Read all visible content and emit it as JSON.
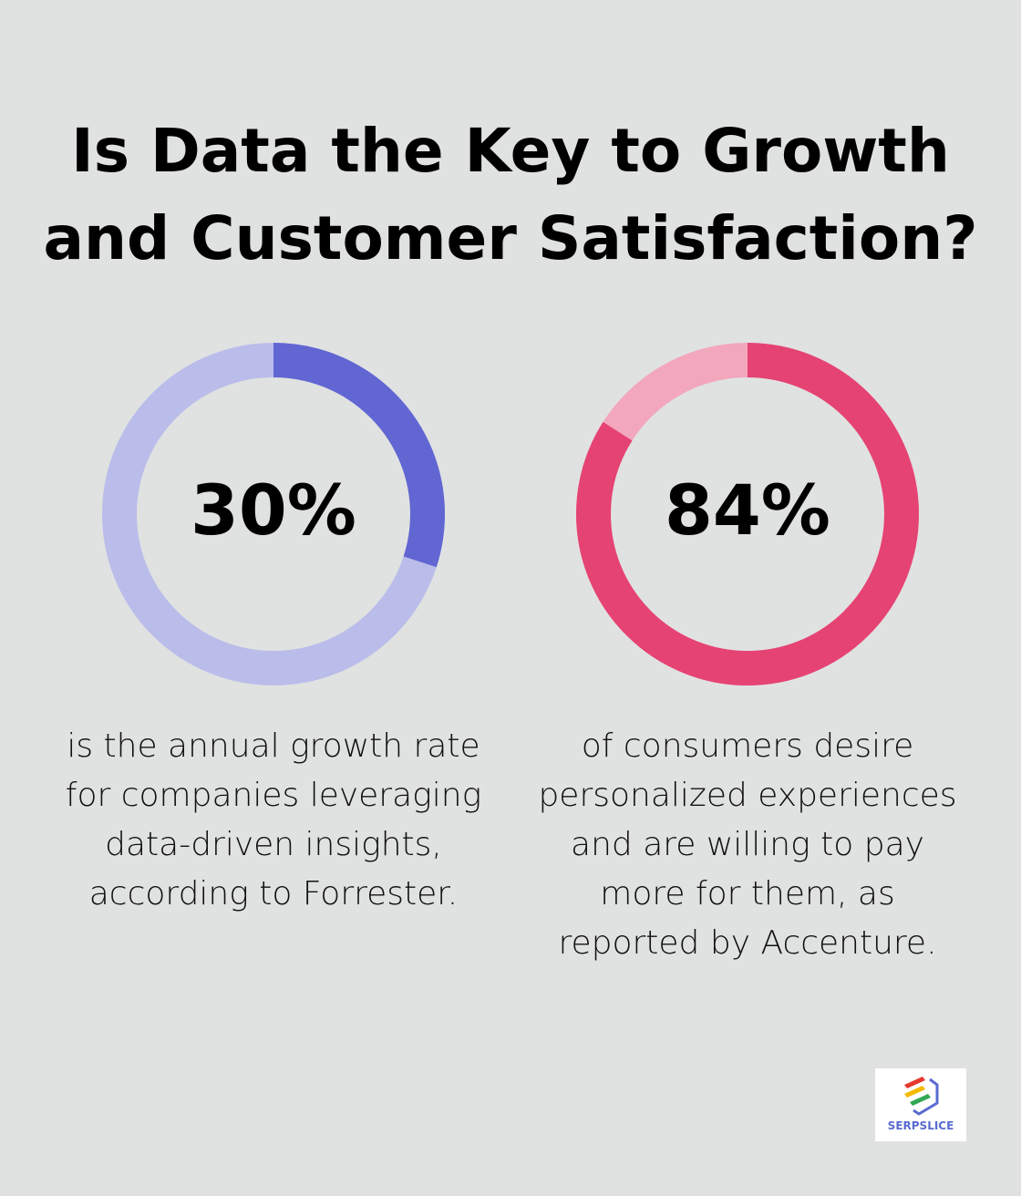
{
  "title_line1": "Is Data the Key to Growth",
  "title_line2": "and Customer Satisfaction?",
  "chart_data": [
    {
      "type": "pie",
      "value": 30,
      "label": "30%",
      "description": "is the annual growth rate for companies leveraging data-driven insights, according to Forrester.",
      "colors": {
        "fill": "#6166d2",
        "track": "#babdea"
      }
    },
    {
      "type": "pie",
      "value": 84,
      "label": "84%",
      "description": "of consumers desire personalized experiences and are willing to pay more for them, as reported by Accenture.",
      "colors": {
        "fill": "#e54373",
        "track": "#f2a7bd"
      }
    }
  ],
  "logo": {
    "text": "SERPSLICE",
    "colors": [
      "#e8392f",
      "#f5b800",
      "#34a853",
      "#5a6bd0"
    ]
  }
}
